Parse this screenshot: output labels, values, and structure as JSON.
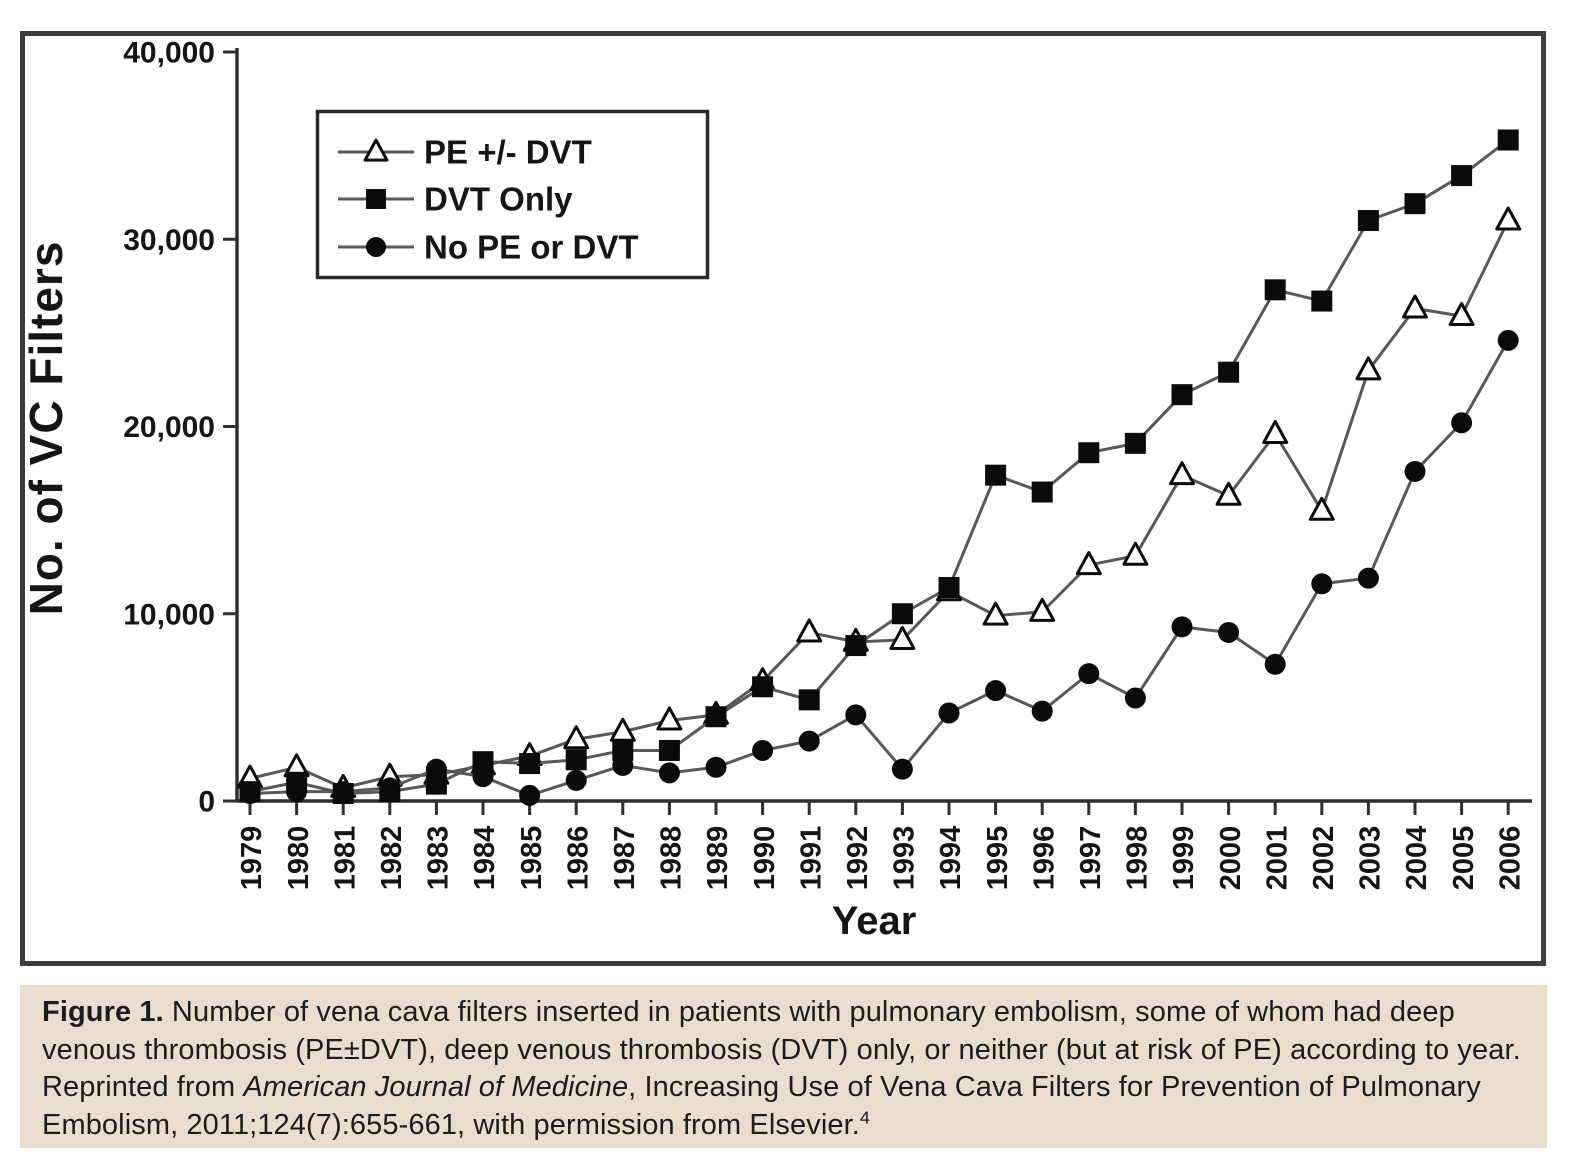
{
  "figure": {
    "panel": {
      "border_color": "#3d3d3d",
      "background": "#ffffff"
    },
    "y_axis": {
      "title": "No. of VC Filters",
      "ticks": [
        {
          "value": 0,
          "label": "0"
        },
        {
          "value": 10000,
          "label": "10,000"
        },
        {
          "value": 20000,
          "label": "20,000"
        },
        {
          "value": 30000,
          "label": "30,000"
        },
        {
          "value": 40000,
          "label": "40,000"
        }
      ]
    },
    "x_axis": {
      "title": "Year"
    },
    "legend": {
      "items": [
        {
          "label": "PE +/- DVT",
          "marker": "triangle-open"
        },
        {
          "label": "DVT Only",
          "marker": "square-filled"
        },
        {
          "label": "No PE or DVT",
          "marker": "circle-filled"
        }
      ],
      "position": "upper-left"
    },
    "colors": {
      "line": "#585858",
      "marker": "#0b0b0b",
      "axis": "#2f2f2f",
      "text": "#151515",
      "caption_background": "#e9ddd0"
    }
  },
  "chart_data": {
    "type": "line",
    "title": "",
    "xlabel": "Year",
    "ylabel": "No. of VC Filters",
    "ylim": [
      0,
      40000
    ],
    "grid": false,
    "legend_position": "upper-left",
    "x": [
      1979,
      1980,
      1981,
      1982,
      1983,
      1984,
      1985,
      1986,
      1987,
      1988,
      1989,
      1990,
      1991,
      1992,
      1993,
      1994,
      1995,
      1996,
      1997,
      1998,
      1999,
      2000,
      2001,
      2002,
      2003,
      2004,
      2005,
      2006
    ],
    "series": [
      {
        "name": "PE +/- DVT",
        "marker": "triangle-open",
        "values": [
          1200,
          1800,
          700,
          1300,
          1400,
          1900,
          2400,
          3300,
          3700,
          4300,
          4600,
          6400,
          9000,
          8500,
          8600,
          11200,
          9900,
          10100,
          12600,
          13100,
          17400,
          16300,
          19600,
          15500,
          23000,
          26300,
          25900,
          31000
        ]
      },
      {
        "name": "DVT Only",
        "marker": "square-filled",
        "values": [
          500,
          1000,
          400,
          500,
          900,
          2100,
          2000,
          2200,
          2700,
          2700,
          4500,
          6100,
          5400,
          8300,
          10000,
          11400,
          17400,
          16500,
          18600,
          19100,
          21700,
          22900,
          27300,
          26700,
          31000,
          31900,
          33400,
          35300
        ]
      },
      {
        "name": "No PE or DVT",
        "marker": "circle-filled",
        "values": [
          400,
          500,
          500,
          700,
          1700,
          1300,
          300,
          1100,
          1900,
          1500,
          1800,
          2700,
          3200,
          4600,
          1700,
          4700,
          5900,
          4800,
          6800,
          5500,
          9300,
          9000,
          7300,
          11600,
          11900,
          17600,
          20200,
          24600
        ]
      }
    ]
  },
  "caption": {
    "lines": [
      [
        {
          "text": "Figure 1.",
          "bold": true
        },
        {
          "text": " Number of vena cava filters inserted in patients with pulmonary embolism, some of whom had deep"
        }
      ],
      [
        {
          "text": "venous thrombosis (PE±DVT), deep venous thrombosis (DVT) only, or neither (but at risk of PE) according to year."
        }
      ],
      [
        {
          "text": "Reprinted from "
        },
        {
          "text": "American Journal of Medicine",
          "italic": true
        },
        {
          "text": ", Increasing Use of Vena Cava Filters for Prevention of Pulmonary"
        }
      ],
      [
        {
          "text": "Embolism, 2011;124(7):655-661, with permission from Elsevier."
        },
        {
          "text": "4",
          "sup": true
        }
      ]
    ]
  }
}
